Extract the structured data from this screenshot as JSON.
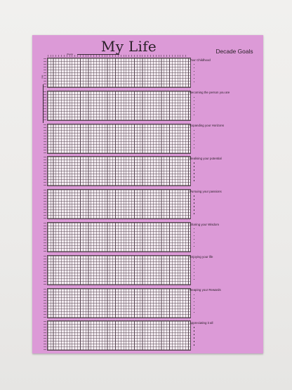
{
  "poster": {
    "title": "My Life",
    "goals_title": "Decade Goals",
    "weeks_label": "Weeks",
    "age_label": "Age",
    "background_color": "#dc9ad7"
  },
  "decades": [
    {
      "label": "Your Childhood",
      "bullets": 6
    },
    {
      "label": "Becoming the person you are",
      "bullets": 6
    },
    {
      "label": "Expanding your Horizons",
      "bullets": 6
    },
    {
      "label": "Realising your potential",
      "bullets": 6
    },
    {
      "label": "Pursuing your passions",
      "bullets": 6
    },
    {
      "label": "Sharing your Wisdom",
      "bullets": 6
    },
    {
      "label": "Enjoying your life",
      "bullets": 6
    },
    {
      "label": "Reaping your Rewards",
      "bullets": 6
    },
    {
      "label": "Appreciating it all",
      "bullets": 6
    }
  ]
}
